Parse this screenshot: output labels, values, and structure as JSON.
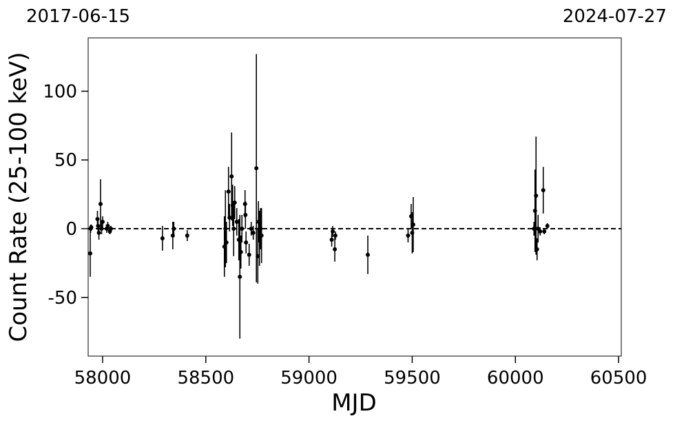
{
  "chart_data": {
    "type": "scatter",
    "annotations": [
      "2017-06-15",
      "2024-07-27"
    ],
    "x_label": "MJD",
    "y_label": "Count Rate (25-100 keV)",
    "x": [
      57940,
      57942,
      57945,
      57975,
      57978,
      57982,
      57990,
      57995,
      58000,
      58020,
      58025,
      58035,
      58040,
      58290,
      58340,
      58345,
      58410,
      58590,
      58595,
      58600,
      58610,
      58615,
      58625,
      58630,
      58635,
      58640,
      58650,
      58660,
      58665,
      58670,
      58675,
      58690,
      58692,
      58695,
      58710,
      58720,
      58730,
      58745,
      58752,
      58755,
      58760,
      58765,
      58770,
      59110,
      59115,
      59125,
      59128,
      59285,
      59480,
      59495,
      59500,
      59505,
      60090,
      60095,
      60100,
      60105,
      60110,
      60120,
      60135,
      60140,
      60155
    ],
    "values": [
      -18,
      0,
      1,
      7,
      2,
      -3,
      18,
      0,
      5,
      0,
      2,
      -2,
      0,
      -7,
      -5,
      0,
      -5,
      -13,
      0,
      -10,
      27,
      8,
      38,
      17,
      0,
      19,
      5,
      -8,
      -35,
      -17,
      0,
      18,
      10,
      -10,
      -19,
      0,
      -3,
      44,
      -20,
      5,
      -7,
      0,
      -5,
      -8,
      -2,
      -15,
      -5,
      -19,
      -5,
      9,
      -3,
      3,
      0,
      13,
      24,
      -15,
      0,
      -2,
      28,
      -2,
      2
    ],
    "errors": [
      17,
      3,
      2,
      6,
      5,
      5,
      18,
      4,
      4,
      3,
      3,
      2,
      2,
      9,
      10,
      5,
      4,
      22,
      28,
      15,
      18,
      10,
      32,
      15,
      20,
      12,
      10,
      15,
      45,
      12,
      10,
      10,
      10,
      8,
      8,
      5,
      5,
      83,
      20,
      15,
      20,
      15,
      20,
      5,
      4,
      9,
      3,
      14,
      5,
      9,
      15,
      20,
      5,
      30,
      43,
      8,
      10,
      3,
      17,
      2,
      2
    ],
    "color": "#000000",
    "reference_line": 0,
    "xlim": [
      57930,
      60513
    ],
    "xticks": [
      58000,
      58500,
      59000,
      59500,
      60000,
      60500
    ],
    "ylim": [
      -92.7,
      138.8
    ],
    "yticks": [
      -50,
      0,
      50,
      100
    ]
  }
}
